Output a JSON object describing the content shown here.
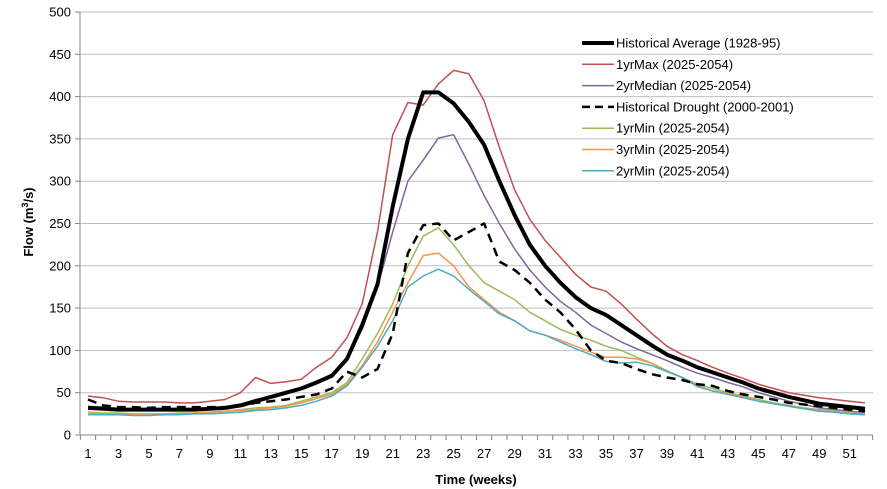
{
  "chart_data": {
    "type": "line",
    "xlabel": "Time (weeks)",
    "ylabel_main": "Flow (m",
    "ylabel_sup": "3",
    "ylabel_tail": "/s)",
    "xlim": [
      1,
      52
    ],
    "ylim": [
      0,
      500
    ],
    "yticks": [
      0,
      50,
      100,
      150,
      200,
      250,
      300,
      350,
      400,
      450,
      500
    ],
    "xticks": [
      1,
      3,
      5,
      7,
      9,
      11,
      13,
      15,
      17,
      19,
      21,
      23,
      25,
      27,
      29,
      31,
      33,
      35,
      37,
      39,
      41,
      43,
      45,
      47,
      49,
      51
    ],
    "grid": "horizontal",
    "legend_position": "top-right",
    "x": [
      1,
      2,
      3,
      4,
      5,
      6,
      7,
      8,
      9,
      10,
      11,
      12,
      13,
      14,
      15,
      16,
      17,
      18,
      19,
      20,
      21,
      22,
      23,
      24,
      25,
      26,
      27,
      28,
      29,
      30,
      31,
      32,
      33,
      34,
      35,
      36,
      37,
      38,
      39,
      40,
      41,
      42,
      43,
      44,
      45,
      46,
      47,
      48,
      49,
      50,
      51,
      52
    ],
    "series": [
      {
        "name": "1yrMax (2025-2054)",
        "color": "#c0504d",
        "width": 1.5,
        "dash": "",
        "values": [
          46,
          44,
          40,
          39,
          39,
          39,
          38,
          38,
          40,
          42,
          50,
          68,
          61,
          63,
          66,
          80,
          92,
          115,
          155,
          240,
          355,
          393,
          390,
          415,
          431,
          427,
          395,
          340,
          290,
          255,
          230,
          210,
          190,
          175,
          170,
          155,
          137,
          120,
          105,
          95,
          88,
          80,
          73,
          67,
          60,
          55,
          50,
          47,
          44,
          42,
          40,
          38
        ]
      },
      {
        "name": "2yrMedian (2025-2054)",
        "color": "#8064a2",
        "width": 1.5,
        "dash": "",
        "values": [
          34,
          33,
          31,
          31,
          31,
          31,
          31,
          31,
          32,
          33,
          36,
          42,
          45,
          49,
          55,
          63,
          72,
          92,
          125,
          175,
          240,
          300,
          325,
          351,
          355,
          320,
          283,
          250,
          220,
          195,
          175,
          158,
          145,
          130,
          120,
          110,
          102,
          95,
          88,
          80,
          73,
          68,
          62,
          57,
          50,
          45,
          40,
          36,
          32,
          30,
          28,
          26
        ]
      },
      {
        "name": "1yrMin (2025-2054)",
        "color": "#9bbb59",
        "width": 1.5,
        "dash": "",
        "values": [
          27,
          26,
          26,
          25,
          25,
          25,
          26,
          26,
          27,
          28,
          30,
          32,
          33,
          35,
          40,
          45,
          50,
          62,
          90,
          120,
          155,
          200,
          235,
          245,
          225,
          200,
          180,
          170,
          160,
          145,
          135,
          125,
          118,
          112,
          105,
          100,
          92,
          85,
          76,
          68,
          60,
          55,
          50,
          46,
          42,
          38,
          35,
          32,
          30,
          28,
          26,
          25
        ]
      },
      {
        "name": "3yrMin (2025-2054)",
        "color": "#f79646",
        "width": 1.5,
        "dash": "",
        "values": [
          26,
          25,
          25,
          25,
          25,
          25,
          25,
          26,
          27,
          28,
          29,
          30,
          32,
          34,
          38,
          43,
          48,
          60,
          82,
          110,
          145,
          180,
          212,
          215,
          200,
          175,
          160,
          145,
          135,
          123,
          118,
          112,
          105,
          98,
          92,
          92,
          90,
          85,
          75,
          68,
          57,
          52,
          49,
          45,
          40,
          37,
          34,
          31,
          29,
          27,
          25,
          24
        ]
      },
      {
        "name": "2yrMin (2025-2054)",
        "color": "#4bacc6",
        "width": 1.5,
        "dash": "",
        "values": [
          24,
          24,
          24,
          23,
          23,
          24,
          24,
          25,
          25,
          26,
          27,
          29,
          30,
          32,
          35,
          40,
          46,
          58,
          80,
          105,
          135,
          175,
          188,
          196,
          188,
          172,
          158,
          143,
          135,
          123,
          118,
          110,
          102,
          95,
          87,
          85,
          86,
          82,
          75,
          68,
          58,
          52,
          48,
          44,
          40,
          37,
          34,
          31,
          28,
          27,
          25,
          24
        ]
      },
      {
        "name": "Historical Drought (2000-2001)",
        "color": "#000000",
        "width": 2.5,
        "dash": "9,6",
        "values": [
          42,
          35,
          33,
          33,
          32,
          33,
          33,
          33,
          33,
          33,
          34,
          38,
          40,
          42,
          45,
          48,
          55,
          75,
          68,
          78,
          120,
          215,
          248,
          250,
          230,
          240,
          250,
          205,
          195,
          180,
          160,
          145,
          125,
          100,
          88,
          85,
          78,
          72,
          68,
          65,
          60,
          58,
          52,
          48,
          45,
          42,
          38,
          36,
          34,
          32,
          30,
          28
        ]
      },
      {
        "name": "Historical Average (1928-95)",
        "color": "#000000",
        "width": 4,
        "dash": "",
        "values": [
          32,
          31,
          30,
          30,
          30,
          30,
          30,
          30,
          31,
          32,
          35,
          40,
          45,
          50,
          55,
          62,
          70,
          90,
          130,
          178,
          270,
          350,
          405,
          405,
          392,
          370,
          343,
          300,
          260,
          225,
          200,
          180,
          163,
          150,
          142,
          130,
          118,
          106,
          95,
          88,
          80,
          74,
          68,
          62,
          55,
          50,
          45,
          41,
          37,
          35,
          33,
          31
        ]
      }
    ],
    "legend_order": [
      "Historical Average (1928-95)",
      "1yrMax (2025-2054)",
      "2yrMedian (2025-2054)",
      "Historical Drought (2000-2001)",
      "1yrMin (2025-2054)",
      "3yrMin (2025-2054)",
      "2yrMin (2025-2054)"
    ]
  }
}
